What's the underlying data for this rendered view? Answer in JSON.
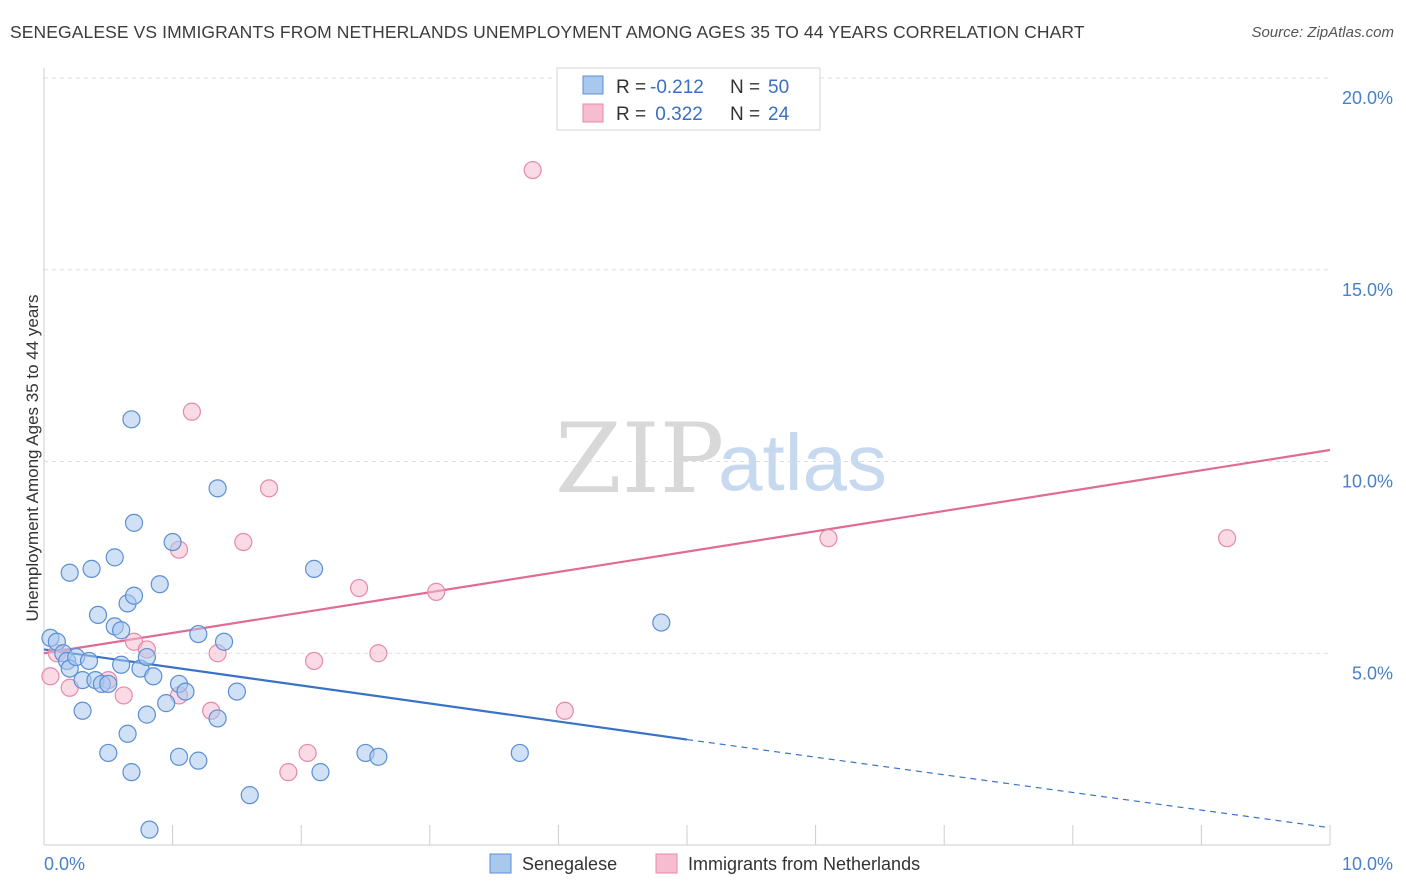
{
  "title": "SENEGALESE VS IMMIGRANTS FROM NETHERLANDS UNEMPLOYMENT AMONG AGES 35 TO 44 YEARS CORRELATION CHART",
  "source": "Source: ZipAtlas.com",
  "watermark": {
    "zip": "ZIP",
    "atlas": "atlas"
  },
  "colors": {
    "blue_fill": "#a9c8ee",
    "blue_stroke": "#5b8fd4",
    "blue_line": "#3a72c8",
    "pink_fill": "#f6bcd0",
    "pink_stroke": "#e58aaa",
    "pink_line": "#e06b94",
    "grid": "#dddddd",
    "tick_text": "#4a80c8"
  },
  "legend": {
    "rows": [
      {
        "r_label": "R = ",
        "r_value": "-0.212",
        "n_label": "N = ",
        "n_value": "50"
      },
      {
        "r_label": "R = ",
        "r_value": " 0.322",
        "n_label": "N = ",
        "n_value": "24"
      }
    ]
  },
  "chart_data": {
    "type": "scatter",
    "title": "SENEGALESE VS IMMIGRANTS FROM NETHERLANDS UNEMPLOYMENT AMONG AGES 35 TO 44 YEARS CORRELATION CHART",
    "xlabel": "",
    "ylabel": "Unemployment Among Ages 35 to 44 years",
    "xlim": [
      0,
      10
    ],
    "ylim": [
      0,
      20
    ],
    "x_tick_labels": [
      "0.0%",
      "10.0%"
    ],
    "y_tick_labels": [
      "5.0%",
      "10.0%",
      "15.0%",
      "20.0%"
    ],
    "y_ticks": [
      5,
      10,
      15,
      20
    ],
    "legend_position": "top-center",
    "series": [
      {
        "name": "Senegalese",
        "color": "#a9c8ee",
        "r": -0.212,
        "n": 50,
        "points": [
          [
            0.05,
            5.4
          ],
          [
            0.1,
            5.3
          ],
          [
            0.15,
            5.0
          ],
          [
            0.18,
            4.8
          ],
          [
            0.2,
            4.6
          ],
          [
            0.25,
            4.9
          ],
          [
            0.3,
            4.3
          ],
          [
            0.35,
            4.8
          ],
          [
            0.4,
            4.3
          ],
          [
            0.45,
            4.2
          ],
          [
            0.5,
            4.2
          ],
          [
            0.55,
            5.7
          ],
          [
            0.6,
            5.6
          ],
          [
            0.65,
            6.3
          ],
          [
            0.7,
            6.5
          ],
          [
            0.75,
            4.6
          ],
          [
            0.8,
            4.9
          ],
          [
            0.85,
            4.4
          ],
          [
            0.9,
            6.8
          ],
          [
            0.95,
            3.7
          ],
          [
            1.0,
            7.9
          ],
          [
            1.05,
            4.2
          ],
          [
            1.1,
            4.0
          ],
          [
            1.2,
            5.5
          ],
          [
            1.35,
            9.3
          ],
          [
            1.4,
            5.3
          ],
          [
            1.5,
            4.0
          ],
          [
            0.2,
            7.1
          ],
          [
            0.37,
            7.2
          ],
          [
            0.42,
            6.0
          ],
          [
            0.55,
            7.5
          ],
          [
            0.7,
            8.4
          ],
          [
            0.68,
            11.1
          ],
          [
            0.3,
            3.5
          ],
          [
            0.5,
            2.4
          ],
          [
            0.65,
            2.9
          ],
          [
            0.68,
            1.9
          ],
          [
            0.8,
            3.4
          ],
          [
            1.05,
            2.3
          ],
          [
            1.2,
            2.2
          ],
          [
            1.35,
            3.3
          ],
          [
            1.6,
            1.3
          ],
          [
            2.1,
            7.2
          ],
          [
            2.15,
            1.9
          ],
          [
            2.5,
            2.4
          ],
          [
            2.6,
            2.3
          ],
          [
            3.7,
            2.4
          ],
          [
            4.8,
            5.8
          ],
          [
            0.82,
            0.4
          ],
          [
            0.6,
            4.7
          ]
        ],
        "trend": {
          "x0": 0,
          "y0": 5.1,
          "x1": 5.0,
          "y1": 2.75,
          "dashed_to_x": 10.0,
          "dashed_to_y": 0.45
        }
      },
      {
        "name": "Immigrants from Netherlands",
        "color": "#f6bcd0",
        "r": 0.322,
        "n": 24,
        "points": [
          [
            0.05,
            4.4
          ],
          [
            0.1,
            5.0
          ],
          [
            0.2,
            4.1
          ],
          [
            0.5,
            4.3
          ],
          [
            0.62,
            3.9
          ],
          [
            0.7,
            5.3
          ],
          [
            0.8,
            5.1
          ],
          [
            1.05,
            7.7
          ],
          [
            1.05,
            3.9
          ],
          [
            1.15,
            11.3
          ],
          [
            1.3,
            3.5
          ],
          [
            1.35,
            5.0
          ],
          [
            1.55,
            7.9
          ],
          [
            1.75,
            9.3
          ],
          [
            1.9,
            1.9
          ],
          [
            2.05,
            2.4
          ],
          [
            2.1,
            4.8
          ],
          [
            2.45,
            6.7
          ],
          [
            2.6,
            5.0
          ],
          [
            3.05,
            6.6
          ],
          [
            3.8,
            17.6
          ],
          [
            4.05,
            3.5
          ],
          [
            6.1,
            8.0
          ],
          [
            9.2,
            8.0
          ]
        ],
        "trend": {
          "x0": 0,
          "y0": 5.0,
          "x1": 10.0,
          "y1": 10.3
        }
      }
    ]
  }
}
